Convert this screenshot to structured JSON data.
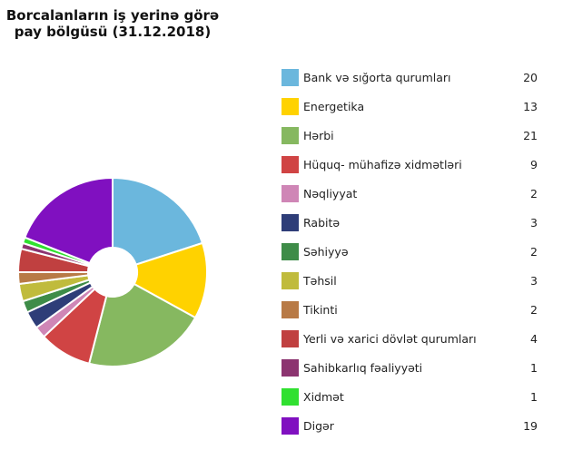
{
  "chart_data": {
    "type": "pie",
    "donut": true,
    "title": [
      "Borcalanların iş yerinə görə",
      "pay bölgüsü (31.12.2018)"
    ],
    "legend_position": "right",
    "categories": [
      "Bank və sığorta qurumları",
      "Energetika",
      "Hərbi",
      "Hüquq- mühafizə xidmətləri",
      "Nəqliyyat",
      "Rabitə",
      "Səhiyyə",
      "Təhsil",
      "Tikinti",
      "Yerli və xarici dövlət qurumları",
      "Sahibkarlıq fəaliyyəti",
      "Xidmət",
      "Digər"
    ],
    "values": [
      20,
      13,
      21,
      9,
      2,
      3,
      2,
      3,
      2,
      4,
      1,
      1,
      19
    ],
    "colors": [
      "#6bb7dd",
      "#ffd200",
      "#86b860",
      "#d04444",
      "#cf86b6",
      "#2e3d78",
      "#3e8c48",
      "#c0bb3c",
      "#b87a46",
      "#c04040",
      "#8c3470",
      "#30e030",
      "#8010c0"
    ]
  }
}
